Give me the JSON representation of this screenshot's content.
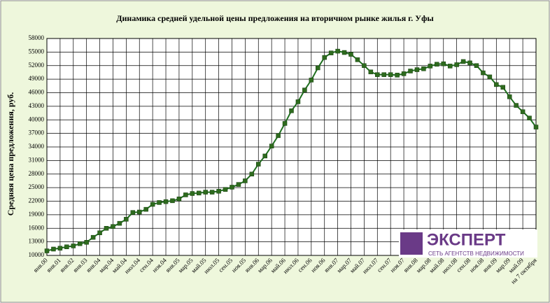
{
  "chart_data": {
    "type": "line",
    "title": "Динамика средней удельной цены предложения на вторичном рынке жилья г. Уфы",
    "y_label": "Средняя цена предложения, руб.",
    "categories": [
      "янв.00",
      null,
      "янв.01",
      null,
      "янв.02",
      null,
      "янв.03",
      null,
      "янв.04",
      null,
      "мар.04",
      null,
      "май.04",
      null,
      "июл.04",
      null,
      "сен.04",
      null,
      "ноя.04",
      null,
      "янв.05",
      null,
      "мар.05",
      null,
      "май.05",
      null,
      "июл.05",
      null,
      "сен.05",
      null,
      "ноя.05",
      null,
      "янв.06",
      null,
      "мар.06",
      null,
      "май.06",
      null,
      "июл.06",
      null,
      "сен.06",
      null,
      "ноя.06",
      null,
      "янв.07",
      null,
      "мар.07",
      null,
      "май.07",
      null,
      "июл.07",
      null,
      "сен.07",
      null,
      "ноя.07",
      null,
      "янв.08",
      null,
      "мар.08",
      null,
      "май.08",
      null,
      "июл.08",
      null,
      "сен.08",
      null,
      "ноя.08",
      null,
      "янв.09",
      null,
      "мар.09",
      null,
      "май.09",
      null,
      "на 7 октября"
    ],
    "values": [
      11000,
      11400,
      11600,
      11900,
      12100,
      12600,
      12900,
      14000,
      15000,
      16000,
      16400,
      17100,
      18000,
      19500,
      19600,
      20200,
      21300,
      21700,
      21900,
      22100,
      22500,
      23400,
      23700,
      23800,
      24000,
      24000,
      24200,
      24600,
      25100,
      25700,
      26500,
      28000,
      30200,
      32000,
      34200,
      36500,
      39200,
      42000,
      44000,
      46600,
      48800,
      51500,
      53800,
      54800,
      55200,
      54900,
      54500,
      53300,
      52000,
      50600,
      50000,
      50000,
      50000,
      49900,
      50200,
      50800,
      51100,
      51300,
      51900,
      52300,
      52400,
      51900,
      52200,
      52900,
      52600,
      52000,
      50400,
      49500,
      47800,
      47200,
      45100,
      43200,
      41800,
      40400,
      38400
    ],
    "color": "#1f6f1f",
    "ylim": [
      10000,
      58000
    ],
    "yticks": [
      10000,
      13000,
      16000,
      19000,
      22000,
      25000,
      28000,
      31000,
      34000,
      37000,
      40000,
      43000,
      46000,
      49000,
      52000,
      55000,
      58000
    ],
    "grid": true
  },
  "logo": {
    "name": "ЭКСПЕРТ",
    "tagline": "СЕТЬ АГЕНТСТВ НЕДВИЖИМОСТИ"
  }
}
